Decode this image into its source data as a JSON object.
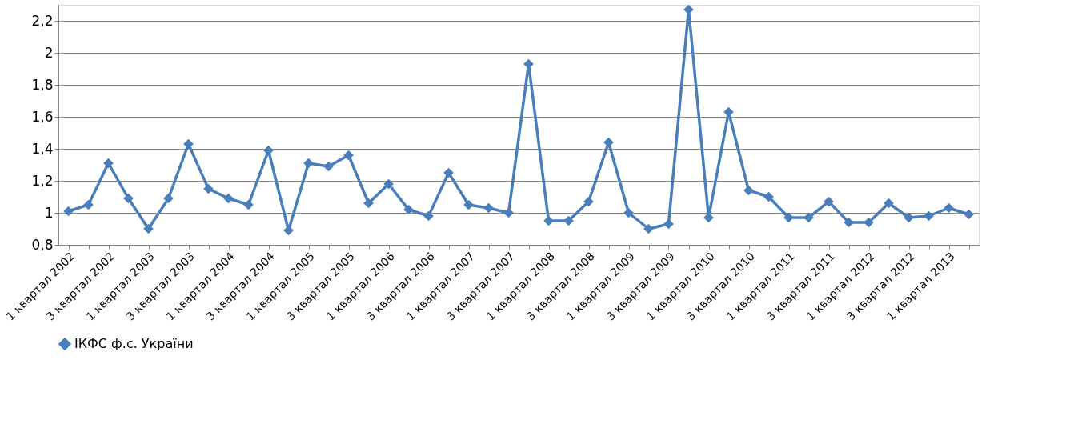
{
  "chart_data": {
    "type": "line",
    "categories": [
      "1 квартал 2002",
      null,
      "3 квартал 2002",
      null,
      "1 квартал 2003",
      null,
      "3 квартал 2003",
      null,
      "1 квартал 2004",
      null,
      "3 квартал 2004",
      null,
      "1 квартал 2005",
      null,
      "3 квартал 2005",
      null,
      "1 квартал 2006",
      null,
      "3 квартал 2006",
      null,
      "1 квартал 2007",
      null,
      "3 квартал 2007",
      null,
      "1 квартал 2008",
      null,
      "3 квартал 2008",
      null,
      "1 квартал 2009",
      null,
      "3 квартал 2009",
      null,
      "1 квартал 2010",
      null,
      "3 квартал 2010",
      null,
      "1 квартал 2011",
      null,
      "3 квартал 2011",
      null,
      "1 квартал 2012",
      null,
      "3 квартал 2012",
      null,
      "1 квартал 2013",
      null
    ],
    "series": [
      {
        "name": "ІКФС ф.с. України",
        "color": "#4a7ebb",
        "values": [
          1.01,
          1.05,
          1.31,
          1.09,
          0.9,
          1.09,
          1.43,
          1.15,
          1.09,
          1.05,
          1.39,
          0.89,
          1.31,
          1.29,
          1.36,
          1.06,
          1.18,
          1.02,
          0.98,
          1.25,
          1.05,
          1.03,
          1.0,
          1.93,
          0.95,
          0.95,
          1.07,
          1.44,
          1.0,
          0.9,
          0.93,
          2.27,
          0.97,
          1.63,
          1.14,
          1.1,
          0.97,
          0.97,
          1.07,
          0.94,
          0.94,
          1.06,
          0.97,
          0.98,
          1.03,
          0.99
        ]
      }
    ],
    "ylim": [
      0.8,
      2.3
    ],
    "yticks": [
      {
        "value": 0.8,
        "label": "0,8"
      },
      1,
      {
        "value": 1.2,
        "label": "1,2"
      },
      {
        "value": 1.4,
        "label": "1,4"
      },
      {
        "value": 1.6,
        "label": "1,6"
      },
      {
        "value": 1.8,
        "label": "1,8"
      },
      2,
      {
        "value": 2.2,
        "label": "2,2"
      }
    ],
    "grid": "y",
    "legend": "bottom",
    "marker": "diamond",
    "line_style": "solid"
  }
}
